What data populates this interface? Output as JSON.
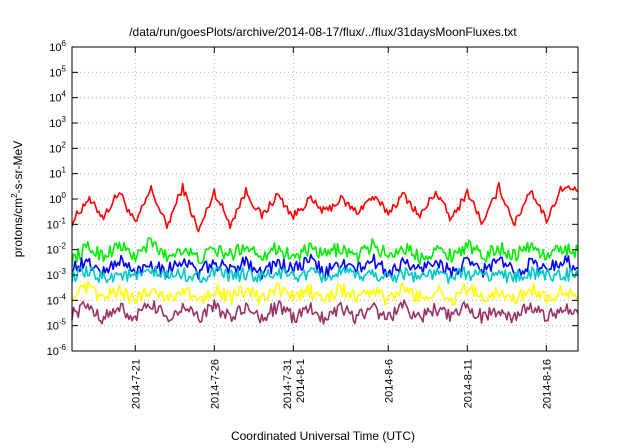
{
  "chart_data": {
    "type": "line",
    "title": "/data/run/goesPlots/archive/2014-08-17/flux/../flux/31daysMoonFluxes.txt",
    "xlabel": "Coordinated Universal Time (UTC)",
    "ylabel_parts": [
      "protons/cm",
      "2",
      "-s-sr-MeV"
    ],
    "y_scale": "log",
    "ylim": [
      1e-06,
      1000000.0
    ],
    "y_ticks": [
      {
        "base": "10",
        "exp": "-6",
        "value": 1e-06
      },
      {
        "base": "10",
        "exp": "-5",
        "value": 1e-05
      },
      {
        "base": "10",
        "exp": "-4",
        "value": 0.0001
      },
      {
        "base": "10",
        "exp": "-3",
        "value": 0.001
      },
      {
        "base": "10",
        "exp": "-2",
        "value": 0.01
      },
      {
        "base": "10",
        "exp": "-1",
        "value": 0.1
      },
      {
        "base": "10",
        "exp": "0",
        "value": 1
      },
      {
        "base": "10",
        "exp": "1",
        "value": 10
      },
      {
        "base": "10",
        "exp": "2",
        "value": 100
      },
      {
        "base": "10",
        "exp": "3",
        "value": 1000
      },
      {
        "base": "10",
        "exp": "4",
        "value": 10000
      },
      {
        "base": "10",
        "exp": "5",
        "value": 100000
      },
      {
        "base": "10",
        "exp": "6",
        "value": 1000000
      }
    ],
    "xlim": [
      "2014-07-17",
      "2014-08-18"
    ],
    "x_ticks": [
      {
        "date": "2014-07-21",
        "lines": [
          "2014-7-21"
        ]
      },
      {
        "date": "2014-07-26",
        "lines": [
          "2014-7-26"
        ]
      },
      {
        "date": "2014-07-31",
        "lines": [
          "2014-7-31",
          "2014-8-1"
        ]
      },
      {
        "date": "2014-08-06",
        "lines": [
          "2014-8-6"
        ]
      },
      {
        "date": "2014-08-11",
        "lines": [
          "2014-8-11"
        ]
      },
      {
        "date": "2014-08-16",
        "lines": [
          "2014-8-16"
        ]
      }
    ],
    "grid": true,
    "series": [
      {
        "color": "#ff0000",
        "values": [
          [
            "2014-07-17",
            0.12
          ],
          [
            "2014-07-18",
            1.0
          ],
          [
            "2014-07-19",
            0.2
          ],
          [
            "2014-07-20",
            2.0
          ],
          [
            "2014-07-21",
            0.1
          ],
          [
            "2014-07-22",
            2.5
          ],
          [
            "2014-07-23",
            0.08
          ],
          [
            "2014-07-24",
            3.0
          ],
          [
            "2014-07-25",
            0.05
          ],
          [
            "2014-07-26",
            2.0
          ],
          [
            "2014-07-27",
            0.1
          ],
          [
            "2014-07-28",
            2.0
          ],
          [
            "2014-07-29",
            0.2
          ],
          [
            "2014-07-30",
            1.5
          ],
          [
            "2014-07-31",
            0.2
          ],
          [
            "2014-08-01",
            1.0
          ],
          [
            "2014-08-02",
            0.3
          ],
          [
            "2014-08-03",
            1.0
          ],
          [
            "2014-08-04",
            0.3
          ],
          [
            "2014-08-05",
            1.2
          ],
          [
            "2014-08-06",
            0.3
          ],
          [
            "2014-08-07",
            1.5
          ],
          [
            "2014-08-08",
            0.2
          ],
          [
            "2014-08-09",
            2.0
          ],
          [
            "2014-08-10",
            0.15
          ],
          [
            "2014-08-11",
            2.0
          ],
          [
            "2014-08-12",
            0.1
          ],
          [
            "2014-08-13",
            3.0
          ],
          [
            "2014-08-14",
            0.1
          ],
          [
            "2014-08-15",
            2.5
          ],
          [
            "2014-08-16",
            0.15
          ],
          [
            "2014-08-17",
            3.0
          ],
          [
            "2014-08-18",
            2.0
          ]
        ]
      },
      {
        "color": "#00ee00",
        "values": [
          [
            "2014-07-17",
            0.004
          ],
          [
            "2014-07-18",
            0.012
          ],
          [
            "2014-07-19",
            0.006
          ],
          [
            "2014-07-20",
            0.015
          ],
          [
            "2014-07-21",
            0.005
          ],
          [
            "2014-07-22",
            0.02
          ],
          [
            "2014-07-23",
            0.005
          ],
          [
            "2014-07-24",
            0.012
          ],
          [
            "2014-07-25",
            0.004
          ],
          [
            "2014-07-26",
            0.01
          ],
          [
            "2014-07-27",
            0.006
          ],
          [
            "2014-07-28",
            0.015
          ],
          [
            "2014-07-29",
            0.006
          ],
          [
            "2014-07-30",
            0.012
          ],
          [
            "2014-07-31",
            0.005
          ],
          [
            "2014-08-01",
            0.01
          ],
          [
            "2014-08-02",
            0.006
          ],
          [
            "2014-08-03",
            0.012
          ],
          [
            "2014-08-04",
            0.005
          ],
          [
            "2014-08-05",
            0.015
          ],
          [
            "2014-08-06",
            0.006
          ],
          [
            "2014-08-07",
            0.012
          ],
          [
            "2014-08-08",
            0.005
          ],
          [
            "2014-08-09",
            0.01
          ],
          [
            "2014-08-10",
            0.006
          ],
          [
            "2014-08-11",
            0.015
          ],
          [
            "2014-08-12",
            0.005
          ],
          [
            "2014-08-13",
            0.012
          ],
          [
            "2014-08-14",
            0.006
          ],
          [
            "2014-08-15",
            0.015
          ],
          [
            "2014-08-16",
            0.005
          ],
          [
            "2014-08-17",
            0.012
          ],
          [
            "2014-08-18",
            0.008
          ]
        ]
      },
      {
        "color": "#0000ff",
        "values": [
          [
            "2014-07-17",
            0.002
          ],
          [
            "2014-07-18",
            0.003
          ],
          [
            "2014-07-19",
            0.0012
          ],
          [
            "2014-07-20",
            0.004
          ],
          [
            "2014-07-21",
            0.0012
          ],
          [
            "2014-07-22",
            0.003
          ],
          [
            "2014-07-23",
            0.0015
          ],
          [
            "2014-07-24",
            0.004
          ],
          [
            "2014-07-25",
            0.0012
          ],
          [
            "2014-07-26",
            0.003
          ],
          [
            "2014-07-27",
            0.0015
          ],
          [
            "2014-07-28",
            0.004
          ],
          [
            "2014-07-29",
            0.0012
          ],
          [
            "2014-07-30",
            0.003
          ],
          [
            "2014-07-31",
            0.0015
          ],
          [
            "2014-08-01",
            0.004
          ],
          [
            "2014-08-02",
            0.0012
          ],
          [
            "2014-08-03",
            0.003
          ],
          [
            "2014-08-04",
            0.0015
          ],
          [
            "2014-08-05",
            0.004
          ],
          [
            "2014-08-06",
            0.0012
          ],
          [
            "2014-08-07",
            0.003
          ],
          [
            "2014-08-08",
            0.0015
          ],
          [
            "2014-08-09",
            0.004
          ],
          [
            "2014-08-10",
            0.0012
          ],
          [
            "2014-08-11",
            0.003
          ],
          [
            "2014-08-12",
            0.0015
          ],
          [
            "2014-08-13",
            0.004
          ],
          [
            "2014-08-14",
            0.0012
          ],
          [
            "2014-08-15",
            0.003
          ],
          [
            "2014-08-16",
            0.0015
          ],
          [
            "2014-08-17",
            0.004
          ],
          [
            "2014-08-18",
            0.002
          ]
        ]
      },
      {
        "color": "#00c8c8",
        "values": [
          [
            "2014-07-17",
            0.0009
          ],
          [
            "2014-07-18",
            0.0012
          ],
          [
            "2014-07-19",
            0.0008
          ],
          [
            "2014-07-20",
            0.0011
          ],
          [
            "2014-07-21",
            0.0008
          ],
          [
            "2014-07-22",
            0.0012
          ],
          [
            "2014-07-23",
            0.0009
          ],
          [
            "2014-07-24",
            0.0011
          ],
          [
            "2014-07-25",
            0.0008
          ],
          [
            "2014-07-26",
            0.0012
          ],
          [
            "2014-07-27",
            0.0009
          ],
          [
            "2014-07-28",
            0.0011
          ],
          [
            "2014-07-29",
            0.0008
          ],
          [
            "2014-07-30",
            0.0012
          ],
          [
            "2014-07-31",
            0.0009
          ],
          [
            "2014-08-01",
            0.0011
          ],
          [
            "2014-08-02",
            0.0008
          ],
          [
            "2014-08-03",
            0.0012
          ],
          [
            "2014-08-04",
            0.0009
          ],
          [
            "2014-08-05",
            0.0011
          ],
          [
            "2014-08-06",
            0.0008
          ],
          [
            "2014-08-07",
            0.0012
          ],
          [
            "2014-08-08",
            0.0009
          ],
          [
            "2014-08-09",
            0.0011
          ],
          [
            "2014-08-10",
            0.0008
          ],
          [
            "2014-08-11",
            0.0012
          ],
          [
            "2014-08-12",
            0.0009
          ],
          [
            "2014-08-13",
            0.0011
          ],
          [
            "2014-08-14",
            0.0008
          ],
          [
            "2014-08-15",
            0.0012
          ],
          [
            "2014-08-16",
            0.0009
          ],
          [
            "2014-08-17",
            0.0011
          ],
          [
            "2014-08-18",
            0.0009
          ]
        ]
      },
      {
        "color": "#ffff00",
        "values": [
          [
            "2014-07-17",
            0.00015
          ],
          [
            "2014-07-18",
            0.0003
          ],
          [
            "2014-07-19",
            0.00012
          ],
          [
            "2014-07-20",
            0.00025
          ],
          [
            "2014-07-21",
            0.0001
          ],
          [
            "2014-07-22",
            0.0003
          ],
          [
            "2014-07-23",
            0.00012
          ],
          [
            "2014-07-24",
            0.00025
          ],
          [
            "2014-07-25",
            0.0001
          ],
          [
            "2014-07-26",
            0.0003
          ],
          [
            "2014-07-27",
            0.00012
          ],
          [
            "2014-07-28",
            0.00025
          ],
          [
            "2014-07-29",
            0.0001
          ],
          [
            "2014-07-30",
            0.0003
          ],
          [
            "2014-07-31",
            0.00012
          ],
          [
            "2014-08-01",
            0.00025
          ],
          [
            "2014-08-02",
            0.0001
          ],
          [
            "2014-08-03",
            0.0003
          ],
          [
            "2014-08-04",
            0.00012
          ],
          [
            "2014-08-05",
            0.00025
          ],
          [
            "2014-08-06",
            0.0001
          ],
          [
            "2014-08-07",
            0.0003
          ],
          [
            "2014-08-08",
            0.00012
          ],
          [
            "2014-08-09",
            0.00025
          ],
          [
            "2014-08-10",
            0.0001
          ],
          [
            "2014-08-11",
            0.0003
          ],
          [
            "2014-08-12",
            0.00012
          ],
          [
            "2014-08-13",
            0.00025
          ],
          [
            "2014-08-14",
            0.0001
          ],
          [
            "2014-08-15",
            0.0003
          ],
          [
            "2014-08-16",
            0.00012
          ],
          [
            "2014-08-17",
            0.00025
          ],
          [
            "2014-08-18",
            0.00015
          ]
        ]
      },
      {
        "color": "#993366",
        "values": [
          [
            "2014-07-17",
            3e-05
          ],
          [
            "2014-07-18",
            6e-05
          ],
          [
            "2014-07-19",
            2e-05
          ],
          [
            "2014-07-20",
            5e-05
          ],
          [
            "2014-07-21",
            2e-05
          ],
          [
            "2014-07-22",
            7e-05
          ],
          [
            "2014-07-23",
            2e-05
          ],
          [
            "2014-07-24",
            5e-05
          ],
          [
            "2014-07-25",
            2e-05
          ],
          [
            "2014-07-26",
            6e-05
          ],
          [
            "2014-07-27",
            2e-05
          ],
          [
            "2014-07-28",
            5e-05
          ],
          [
            "2014-07-29",
            2e-05
          ],
          [
            "2014-07-30",
            6e-05
          ],
          [
            "2014-07-31",
            2e-05
          ],
          [
            "2014-08-01",
            5e-05
          ],
          [
            "2014-08-02",
            2e-05
          ],
          [
            "2014-08-03",
            6e-05
          ],
          [
            "2014-08-04",
            2e-05
          ],
          [
            "2014-08-05",
            5e-05
          ],
          [
            "2014-08-06",
            2e-05
          ],
          [
            "2014-08-07",
            6e-05
          ],
          [
            "2014-08-08",
            2e-05
          ],
          [
            "2014-08-09",
            5e-05
          ],
          [
            "2014-08-10",
            2e-05
          ],
          [
            "2014-08-11",
            6e-05
          ],
          [
            "2014-08-12",
            2e-05
          ],
          [
            "2014-08-13",
            5e-05
          ],
          [
            "2014-08-14",
            2e-05
          ],
          [
            "2014-08-15",
            6e-05
          ],
          [
            "2014-08-16",
            2e-05
          ],
          [
            "2014-08-17",
            5e-05
          ],
          [
            "2014-08-18",
            3e-05
          ]
        ]
      }
    ]
  }
}
